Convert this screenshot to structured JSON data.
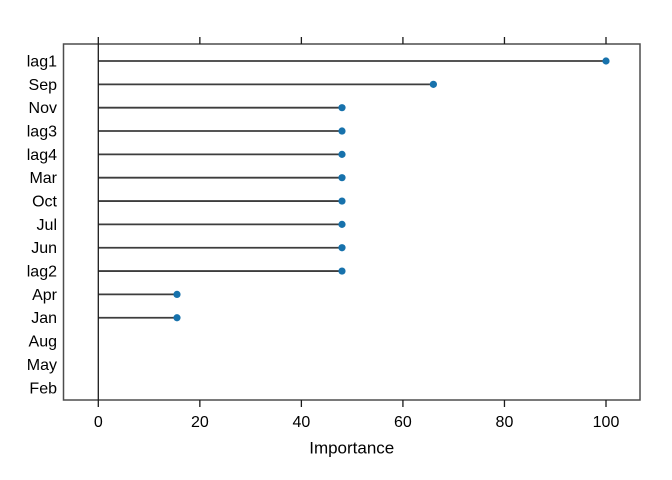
{
  "chart_data": {
    "type": "lollipop",
    "orientation": "horizontal",
    "title": "",
    "xlabel": "Importance",
    "ylabel": "",
    "categories": [
      "lag1",
      "Sep",
      "Nov",
      "lag3",
      "lag4",
      "Mar",
      "Oct",
      "Jul",
      "Jun",
      "lag2",
      "Apr",
      "Jan",
      "Aug",
      "May",
      "Feb"
    ],
    "values": [
      100,
      66,
      48,
      48,
      48,
      48,
      48,
      48,
      48,
      48,
      15.5,
      15.5,
      0,
      0,
      0
    ],
    "x_ticks": [
      0,
      20,
      40,
      60,
      80,
      100
    ],
    "xlim": [
      -7,
      107
    ],
    "grid": false,
    "legend": null,
    "zero_reference_line": true,
    "ticks_on_top_axis": true,
    "hide_marker_for_zero": true,
    "colors": {
      "dot": "#1772ac",
      "needle": "#3d3d3d",
      "box": "#4d4d4d",
      "axis": "#1a1a1a",
      "text": "#000000",
      "background": "#ffffff"
    }
  }
}
